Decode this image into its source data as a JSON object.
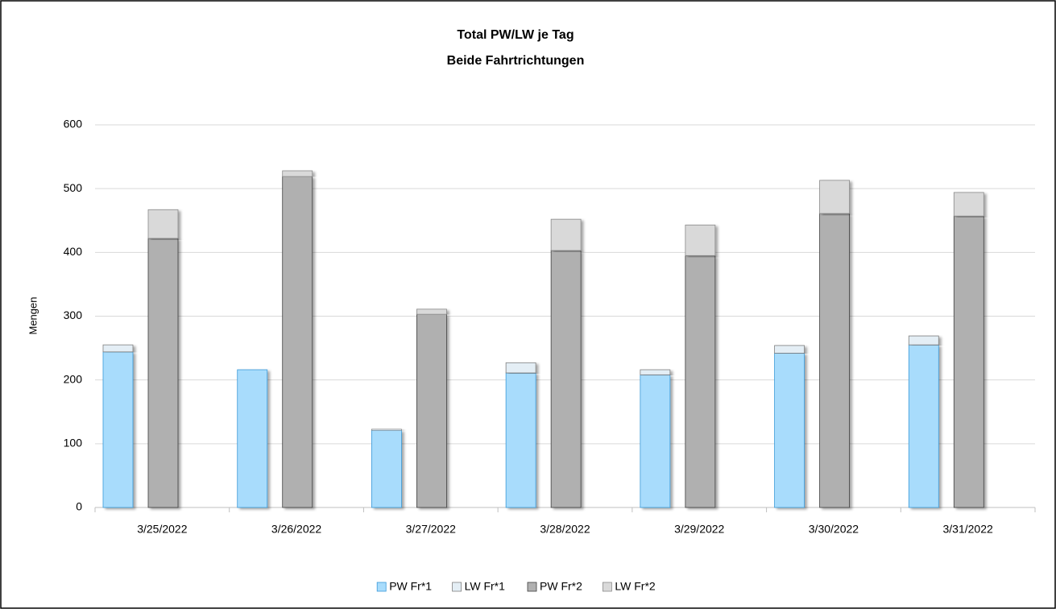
{
  "chart_data": {
    "type": "bar",
    "stacked": true,
    "title": "Total PW/LW  je Tag",
    "subtitle": "Beide Fahrtrichtungen",
    "y_label": "Mengen",
    "categories": [
      "3/25/2022",
      "3/26/2022",
      "3/27/2022",
      "3/28/2022",
      "3/29/2022",
      "3/30/2022",
      "3/31/2022"
    ],
    "series": [
      {
        "name": "PW Fr*1",
        "color": "#a8dcfc",
        "stroke": "#3a9ad9",
        "stack": 1,
        "values": [
          244,
          216,
          121,
          211,
          208,
          242,
          255
        ]
      },
      {
        "name": "LW Fr*1",
        "color": "#e4eef5",
        "stroke": "#7f7f7f",
        "stack": 1,
        "values": [
          11,
          0,
          2,
          16,
          8,
          12,
          14
        ]
      },
      {
        "name": "PW Fr*2",
        "color": "#b0b0b0",
        "stroke": "#404040",
        "stack": 2,
        "values": [
          422,
          519,
          303,
          403,
          395,
          461,
          457
        ]
      },
      {
        "name": "LW Fr*2",
        "color": "#d9d9d9",
        "stroke": "#8a8a8a",
        "stack": 2,
        "values": [
          45,
          9,
          8,
          49,
          48,
          52,
          37
        ]
      }
    ],
    "ylim": [
      0,
      600
    ],
    "yticks": [
      0,
      100,
      200,
      300,
      400,
      500,
      600
    ],
    "grid": true,
    "legend": "bottom"
  }
}
